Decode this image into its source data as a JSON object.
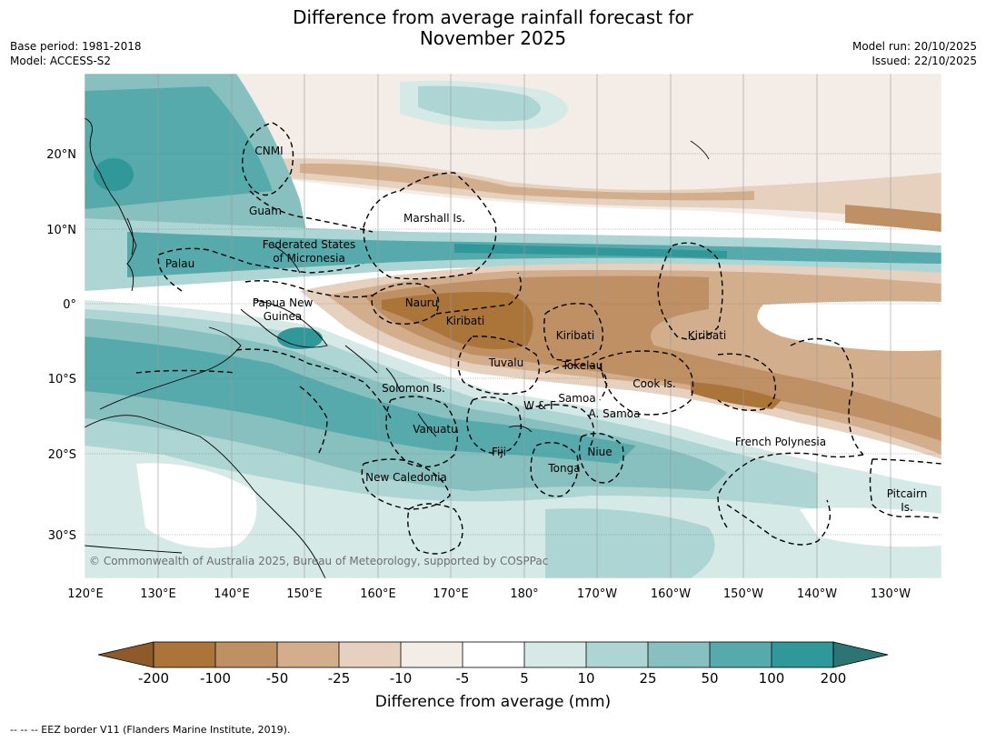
{
  "title": {
    "line1": "Difference from average rainfall forecast for",
    "line2": "November 2025"
  },
  "meta": {
    "base_period": "Base period: 1981-2018",
    "model": "Model: ACCESS-S2",
    "model_run": "Model run: 20/10/2025",
    "issued": "Issued: 22/10/2025"
  },
  "axes": {
    "lat_labels": [
      "20°N",
      "10°N",
      "0°",
      "10°S",
      "20°S",
      "30°S"
    ],
    "lon_labels": [
      "120°E",
      "130°E",
      "140°E",
      "150°E",
      "160°E",
      "170°E",
      "180°",
      "170°W",
      "160°W",
      "150°W",
      "140°W",
      "130°W"
    ]
  },
  "regions": {
    "cnmi": "CNMI",
    "guam": "Guam",
    "marshall": "Marshall Is.",
    "fsm_1": "Federated States",
    "fsm_2": "of Micronesia",
    "palau": "Palau",
    "png_1": "Papua New",
    "png_2": "Guinea",
    "nauru": "Nauru",
    "kiribati_w": "Kiribati",
    "kiribati_c": "Kiribati",
    "kiribati_e": "Kiribati",
    "tuvalu": "Tuvalu",
    "tokelau": "Tokelau",
    "cook": "Cook Is.",
    "solomon": "Solomon Is.",
    "samoa": "Samoa",
    "wf": "W & F",
    "asamoa": "A. Samoa",
    "vanuatu": "Vanuatu",
    "fiji": "Fiji",
    "niue": "Niue",
    "tonga": "Tonga",
    "french_poly": "French Polynesia",
    "new_caledonia": "New Caledonia",
    "pitcairn_1": "Pitcairn",
    "pitcairn_2": "Is."
  },
  "copyright": "© Commonwealth of Australia 2025, Bureau of Meteorology, supported by COSPPac",
  "colorbar": {
    "title": "Difference from average (mm)",
    "tick_labels": [
      "-200",
      "-100",
      "-50",
      "-25",
      "-10",
      "-5",
      "5",
      "10",
      "25",
      "50",
      "100",
      "200"
    ],
    "colors": [
      "#8f5a2a",
      "#ab7439",
      "#bf9064",
      "#d2ae8d",
      "#e6d1bf",
      "#f4ece6",
      "#ffffff",
      "#d5e9e7",
      "#add5d4",
      "#87c0bf",
      "#57aaab",
      "#31989a",
      "#2d7575"
    ]
  },
  "footer": "--  --  -- EEZ border V11 (Flanders Marine Institute, 2019)."
}
